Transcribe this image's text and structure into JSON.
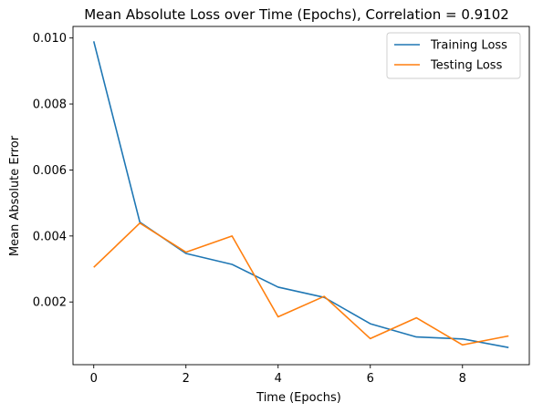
{
  "chart_data": {
    "type": "line",
    "title": "Mean Absolute Loss over Time (Epochs), Correlation = 0.9102",
    "xlabel": "Time (Epochs)",
    "ylabel": "Mean Absolute Error",
    "x": [
      0,
      1,
      2,
      3,
      4,
      5,
      6,
      7,
      8,
      9
    ],
    "xlim": [
      -0.45,
      9.45
    ],
    "ylim": [
      0.0001,
      0.01035
    ],
    "xticks": [
      0,
      2,
      4,
      6,
      8
    ],
    "xtick_labels": [
      "0",
      "2",
      "4",
      "6",
      "8"
    ],
    "yticks": [
      0.002,
      0.004,
      0.006,
      0.008,
      0.01
    ],
    "ytick_labels": [
      "0.002",
      "0.004",
      "0.006",
      "0.008",
      "0.010"
    ],
    "grid": false,
    "legend_position": "top-right",
    "series": [
      {
        "name": "Training Loss",
        "color": "#1f77b4",
        "values": [
          0.0099,
          0.00442,
          0.00347,
          0.00314,
          0.00245,
          0.00214,
          0.00134,
          0.00094,
          0.00088,
          0.00062
        ]
      },
      {
        "name": "Testing Loss",
        "color": "#ff7f0e",
        "values": [
          0.00305,
          0.00439,
          0.00351,
          0.004,
          0.00155,
          0.00217,
          0.00089,
          0.00152,
          0.0007,
          0.00097
        ]
      }
    ]
  }
}
